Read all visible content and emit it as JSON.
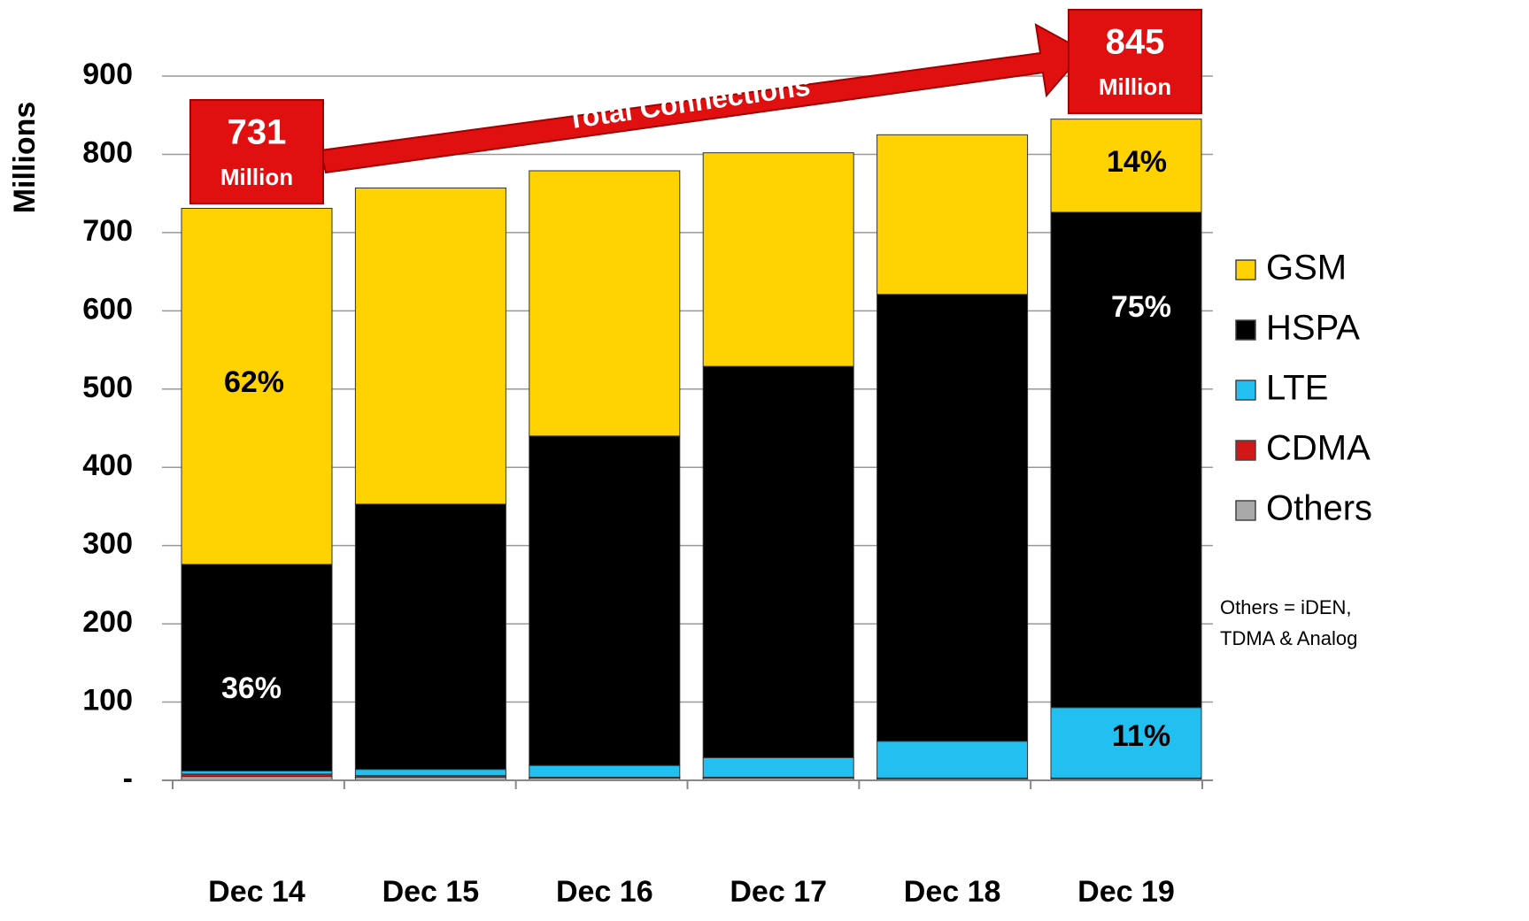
{
  "chart_data": {
    "type": "bar",
    "stacked": true,
    "y_label": "Millions",
    "categories": [
      "Dec 14",
      "Dec 15",
      "Dec 16",
      "Dec 17",
      "Dec 18",
      "Dec 19"
    ],
    "series": [
      {
        "name": "GSM",
        "color": "#ffd200",
        "values": [
          455,
          404,
          339,
          273,
          204,
          119
        ]
      },
      {
        "name": "HSPA",
        "color": "#000000",
        "values": [
          264,
          339,
          421,
          500,
          571,
          633
        ]
      },
      {
        "name": "LTE",
        "color": "#22c0f0",
        "values": [
          4,
          8,
          15,
          25,
          47,
          90
        ]
      },
      {
        "name": "CDMA",
        "color": "#d01818",
        "values": [
          3,
          2,
          1,
          1,
          1,
          1
        ]
      },
      {
        "name": "Others",
        "color": "#a8a8a8",
        "values": [
          5,
          4,
          3,
          3,
          2,
          2
        ]
      }
    ],
    "ylim": [
      0,
      900
    ],
    "yticks": [
      {
        "value": 0,
        "label": "-"
      },
      100,
      200,
      300,
      400,
      500,
      600,
      700,
      800,
      900
    ],
    "grid": true,
    "legend": "right",
    "percent_labels": [
      "62%",
      "36%",
      "14%",
      "75%",
      "11%"
    ],
    "callouts": [
      {
        "text": "731",
        "sub": "Million"
      },
      {
        "text": "845",
        "sub": "Million"
      }
    ],
    "arrow_label": "Total Connections",
    "note": [
      "Others = iDEN,",
      "TDMA & Analog"
    ]
  }
}
